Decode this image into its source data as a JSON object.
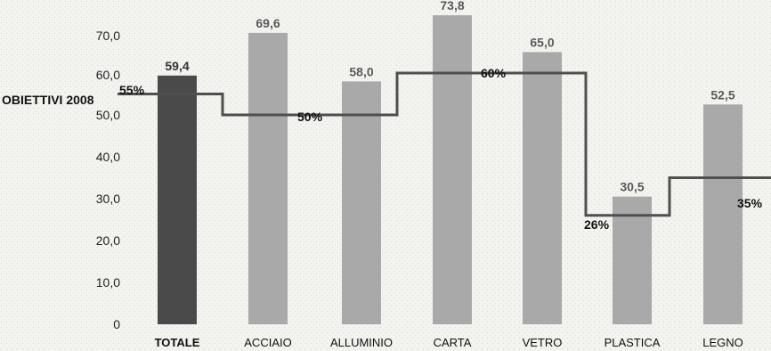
{
  "chart_data": {
    "type": "bar",
    "categories": [
      "TOTALE",
      "ACCIAIO",
      "ALLUMINIO",
      "CARTA",
      "VETRO",
      "PLASTICA",
      "LEGNO"
    ],
    "values": [
      59.4,
      69.6,
      58.0,
      73.8,
      65.0,
      30.5,
      52.5
    ],
    "value_labels": [
      "59,4",
      "69,6",
      "58,0",
      "73,8",
      "65,0",
      "30,5",
      "52,5"
    ],
    "yticks": [
      "0",
      "10,0",
      "20,0",
      "30,0",
      "40,0",
      "50,0",
      "60,0",
      "70,0"
    ],
    "ylim": [
      0,
      75
    ],
    "targets": {
      "label": "OBIETTIVI 2008",
      "values": [
        55,
        50,
        60,
        26,
        35
      ],
      "value_labels": [
        "55%",
        "50%",
        "60%",
        "26%",
        "35%"
      ],
      "categories_covered": [
        "TOTALE",
        "ACCIAIO-ALLUMINIO",
        "CARTA-VETRO",
        "PLASTICA",
        "LEGNO"
      ]
    },
    "colors": {
      "total_bar": "#4a4a4a",
      "bar": "#a9a9a9",
      "target_line": "#4f4f4f",
      "background": "#f3f3f0"
    }
  }
}
